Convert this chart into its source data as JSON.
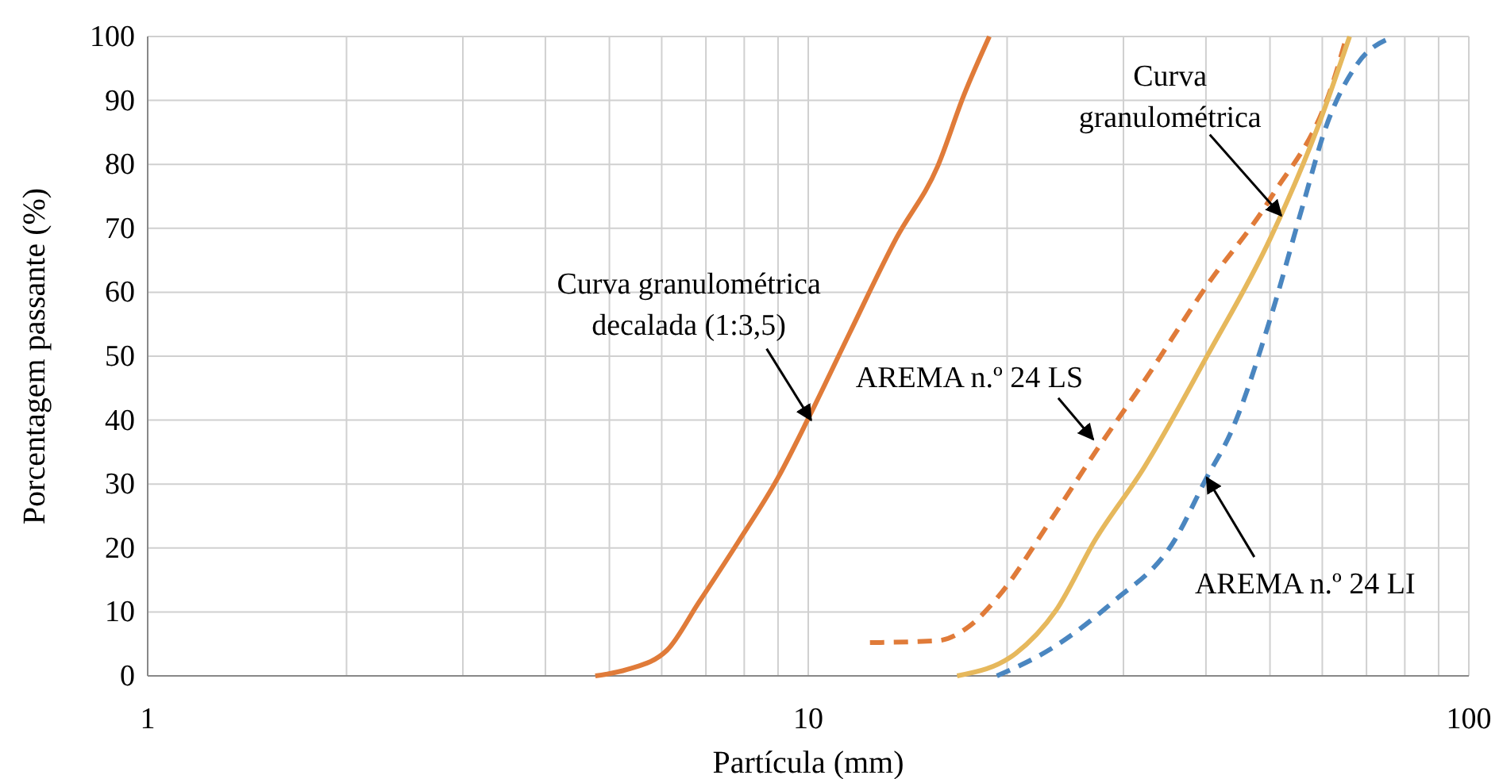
{
  "chart_data": {
    "type": "line",
    "xlabel": "Partícula (mm)",
    "ylabel": "Porcentagem passante (%)",
    "log": "x",
    "xlim": [
      1,
      100
    ],
    "xticks": [
      1,
      10,
      100
    ],
    "ylim": [
      0,
      100
    ],
    "yticks": [
      0,
      10,
      20,
      30,
      40,
      50,
      60,
      70,
      80,
      90,
      100
    ],
    "grid": true,
    "series": [
      {
        "color": "#e07b39",
        "line_style": "solid",
        "x": [
          4.76,
          5.32,
          6.11,
          6.82,
          7.84,
          9.0,
          10.05,
          11.55,
          13.6,
          15.7,
          17.2,
          18.8
        ],
        "values": [
          0,
          1,
          4,
          11.4,
          21,
          31,
          40.7,
          53.6,
          68.5,
          79.7,
          90.8,
          100
        ]
      },
      {
        "color": "#e07b39",
        "line_style": "dashed",
        "x": [
          12.4,
          15.7,
          17.5,
          19.5,
          23.1,
          27.2,
          32.2,
          40.1,
          50.1,
          62.5,
          65.3
        ],
        "values": [
          5.2,
          5.5,
          7.7,
          12.7,
          23.8,
          35,
          46,
          61,
          74.7,
          93.3,
          100
        ]
      },
      {
        "color": "#e6b85c",
        "line_style": "solid",
        "x": [
          16.8,
          20.6,
          23.7,
          27.2,
          32.2,
          40.1,
          50.1,
          59.1,
          66
        ],
        "values": [
          0,
          3.5,
          10.2,
          21.3,
          32.5,
          49.9,
          68.5,
          85.9,
          100
        ]
      },
      {
        "color": "#4a86c0",
        "line_style": "dashed",
        "x": [
          19.3,
          23.1,
          28.8,
          35.9,
          40.1,
          43.6,
          50.1,
          56,
          60.8,
          67.9,
          77
        ],
        "values": [
          0,
          4,
          11.4,
          21.3,
          31,
          38,
          56,
          73.4,
          85.9,
          95.8,
          100
        ]
      }
    ],
    "annotations": [
      {
        "text": "Curva granulométrica\ndecalada (1:3,5)",
        "x": 10.1,
        "y": 40
      },
      {
        "text": "AREMA n.º 24 LS",
        "x": 27,
        "y": 37
      },
      {
        "text": "Curva\ngranulométrica",
        "x": 52,
        "y": 72
      },
      {
        "text": "AREMA n.º 24 LI",
        "x": 40.1,
        "y": 31
      }
    ]
  }
}
